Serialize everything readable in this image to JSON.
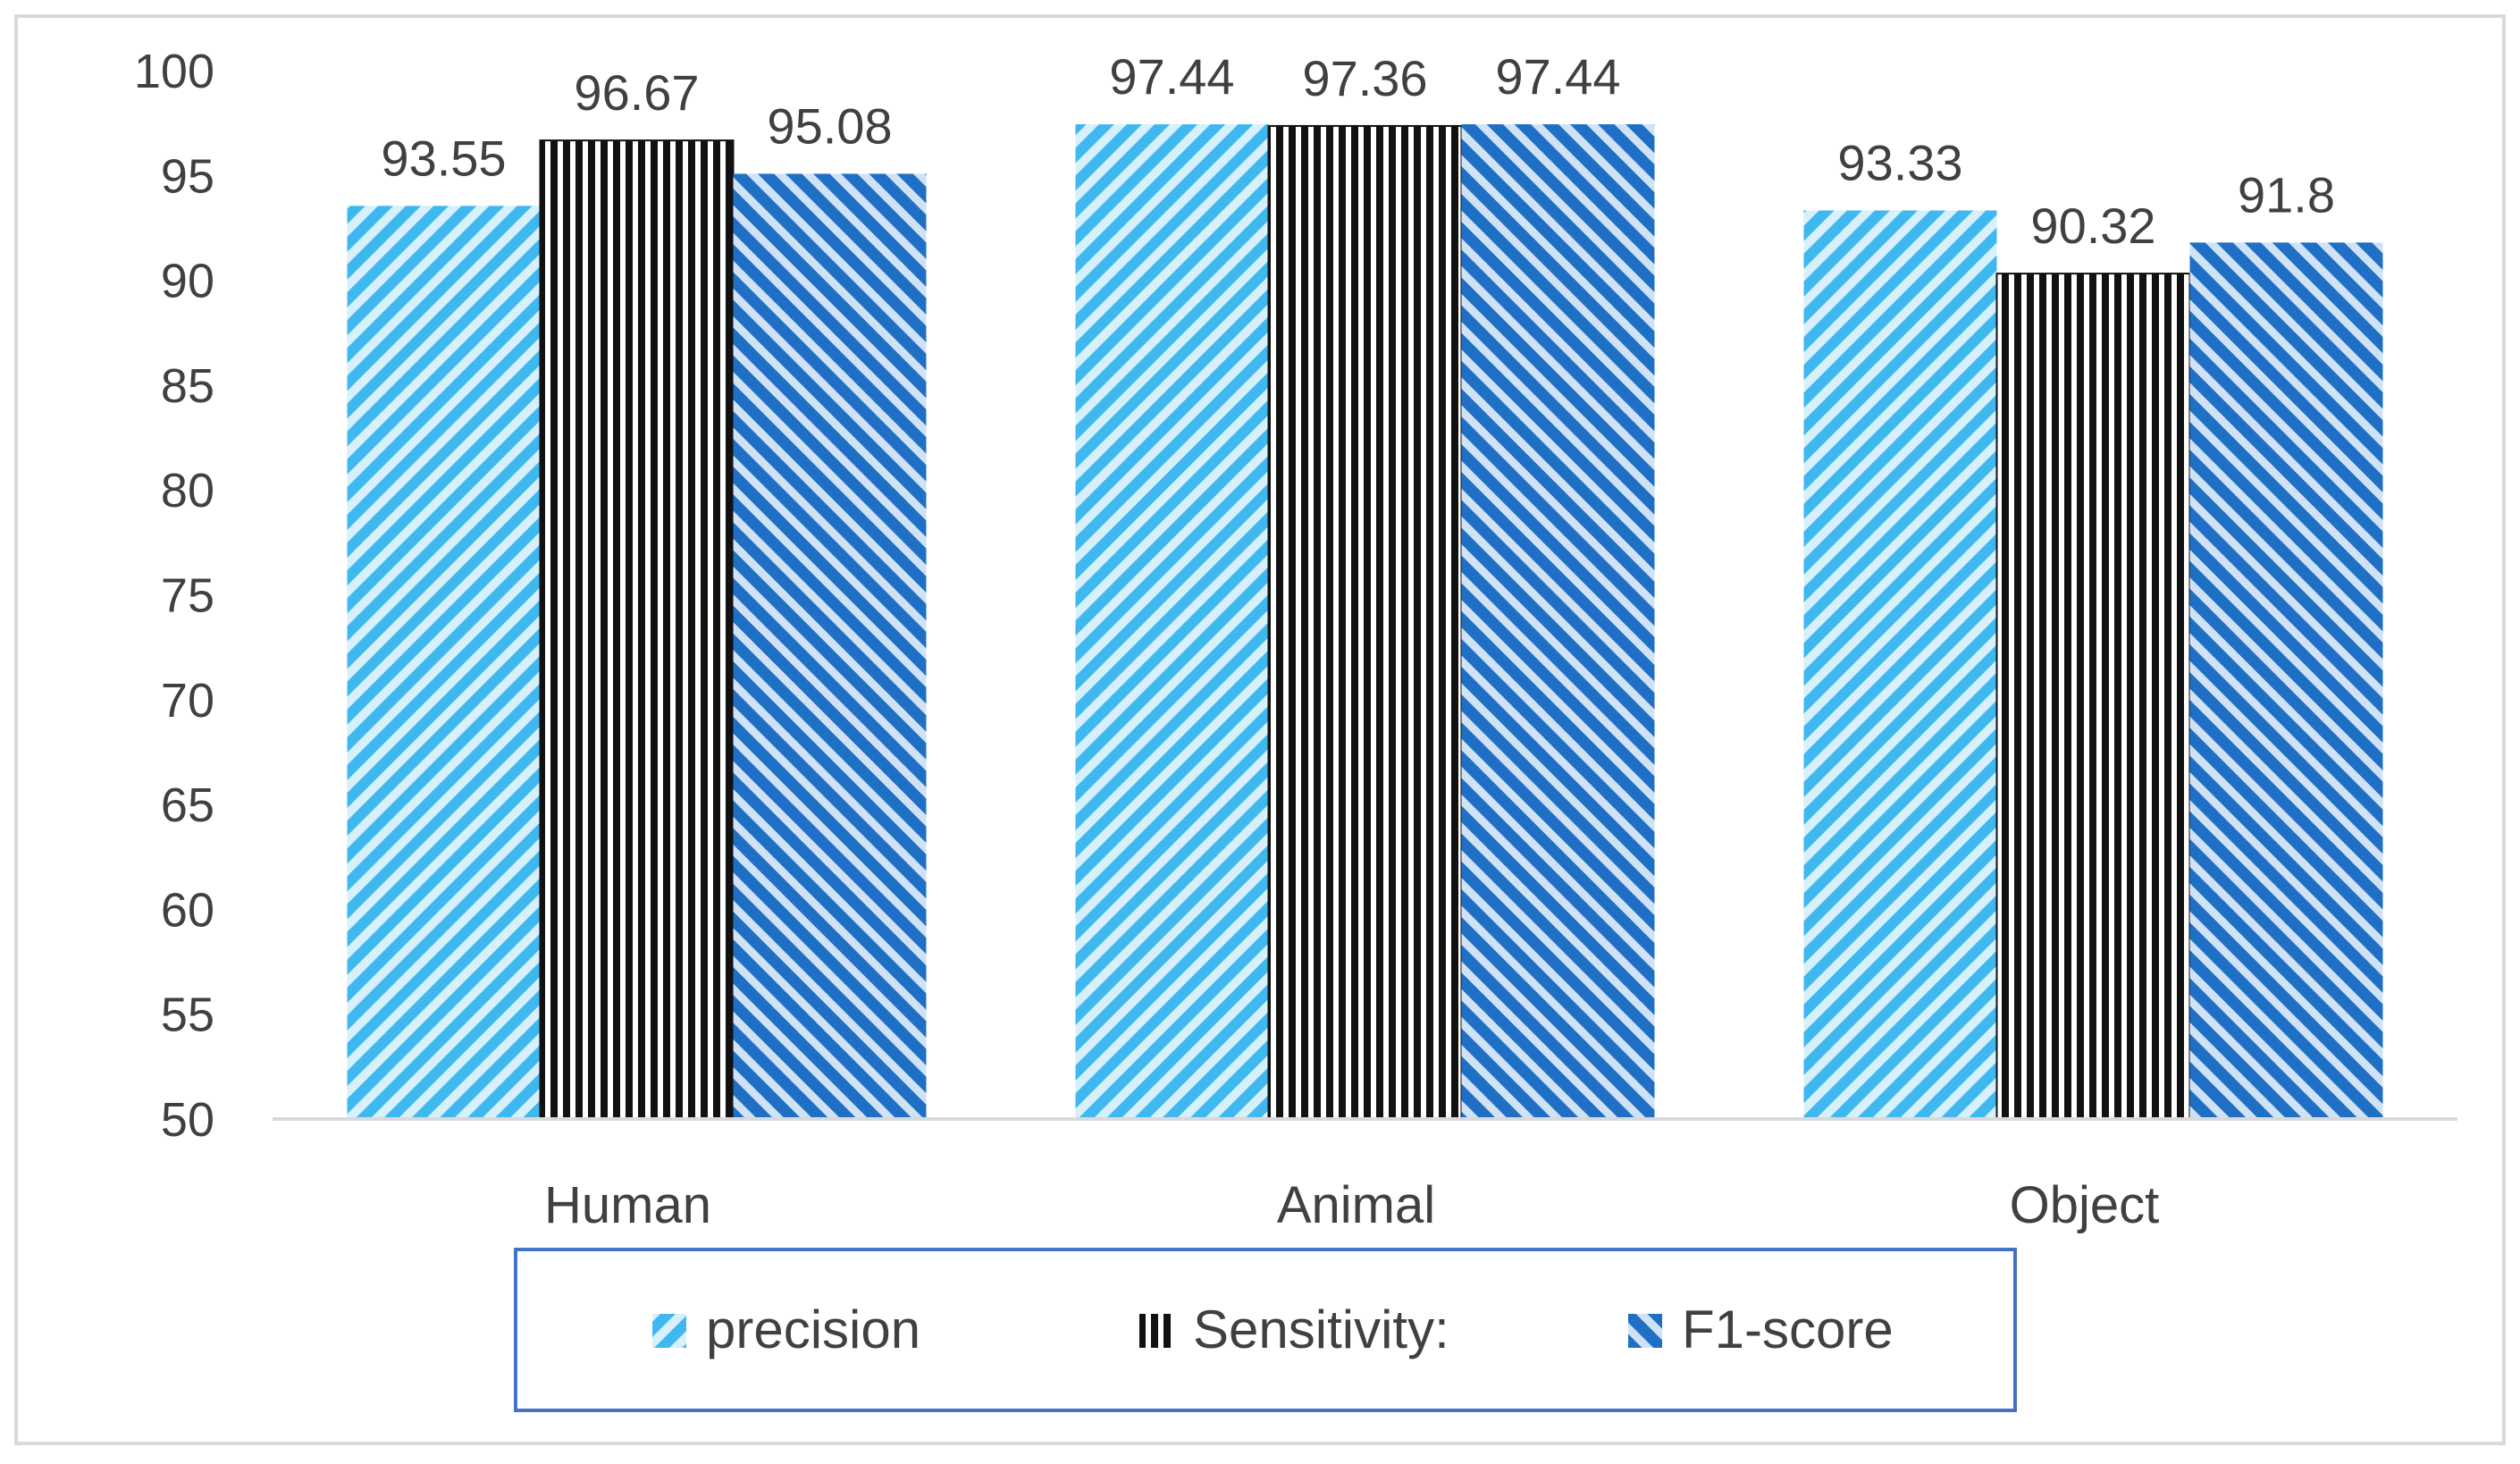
{
  "chart_data": {
    "type": "bar",
    "title": "",
    "xlabel": "",
    "ylabel": "",
    "ylim": [
      50,
      100
    ],
    "yticks": [
      50,
      55,
      60,
      65,
      70,
      75,
      80,
      85,
      90,
      95,
      100
    ],
    "grid": false,
    "legend_position": "bottom",
    "categories": [
      "Human",
      "Animal",
      "Object"
    ],
    "series": [
      {
        "name": "precision",
        "values": [
          93.55,
          97.44,
          93.33
        ],
        "labels": [
          "93.55",
          "97.44",
          "93.33"
        ],
        "color": "#3fb8ef",
        "pattern": "diagonal-up"
      },
      {
        "name": "Sensitivity:",
        "values": [
          96.67,
          97.36,
          90.32
        ],
        "labels": [
          "96.67",
          "97.36",
          "90.32"
        ],
        "color": "#111111",
        "pattern": "vertical"
      },
      {
        "name": "F1-score",
        "values": [
          95.08,
          97.44,
          91.8
        ],
        "labels": [
          "95.08",
          "97.44",
          "91.8"
        ],
        "color": "#1f6fc5",
        "pattern": "diagonal-down"
      }
    ]
  }
}
